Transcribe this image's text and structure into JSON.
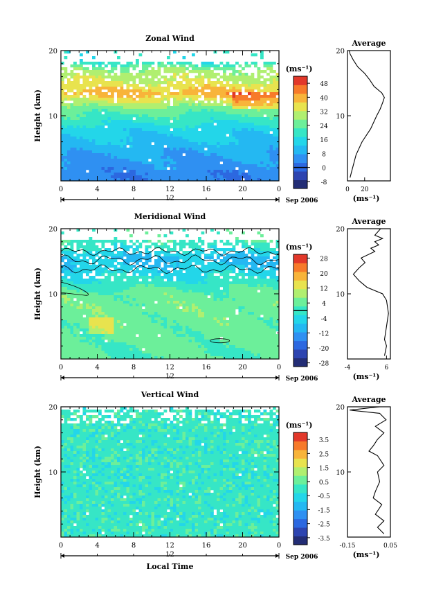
{
  "figure": {
    "xlabel": "Local Time",
    "date_label": "Sep 2006",
    "xticks": [
      "0",
      "4",
      "8",
      "12",
      "16",
      "20",
      "0"
    ],
    "yticks": [
      "10",
      "20"
    ],
    "ylabel": "Height (km)",
    "unit_label": "(ms⁻¹)",
    "day_label": "12",
    "avg_title": "Average"
  },
  "chart_data": [
    {
      "type": "heatmap",
      "title": "Zonal Wind",
      "ylabel": "Height (km)",
      "xlabel": "",
      "xlim": [
        0,
        24
      ],
      "ylim": [
        0,
        20
      ],
      "xticks": [
        "0",
        "4",
        "8",
        "12",
        "16",
        "20",
        "0"
      ],
      "yticks": [
        "10",
        "20"
      ],
      "colorbar": {
        "unit": "(ms⁻¹)",
        "ticks": [
          "48",
          "40",
          "32",
          "24",
          "16",
          "8",
          "0",
          "-8"
        ],
        "range": [
          -12,
          52
        ],
        "zero_line": 0
      },
      "field_profile": [
        [
          1,
          4
        ],
        [
          4,
          8
        ],
        [
          8,
          15
        ],
        [
          11,
          25
        ],
        [
          12.5,
          34
        ],
        [
          13.5,
          40
        ],
        [
          15,
          33
        ],
        [
          17,
          28
        ],
        [
          18.3,
          18
        ]
      ],
      "data_top_km": 18.3,
      "average": {
        "title": "Average",
        "xlim": [
          0,
          50
        ],
        "xticks": [
          "0",
          "20"
        ],
        "xlabel": "(ms⁻¹)",
        "profile": [
          [
            0.5,
            3
          ],
          [
            2,
            6
          ],
          [
            4,
            10
          ],
          [
            6,
            17
          ],
          [
            8,
            27
          ],
          [
            10,
            34
          ],
          [
            11,
            38
          ],
          [
            12,
            41
          ],
          [
            12.8,
            43
          ],
          [
            13.5,
            40
          ],
          [
            14.5,
            31
          ],
          [
            15.5,
            26
          ],
          [
            16.5,
            20
          ],
          [
            17.5,
            12
          ],
          [
            18.5,
            7
          ],
          [
            19.5,
            3
          ],
          [
            20,
            2
          ]
        ]
      }
    },
    {
      "type": "heatmap",
      "title": "Meridional Wind",
      "ylabel": "Height (km)",
      "xlabel": "",
      "xlim": [
        0,
        24
      ],
      "ylim": [
        0,
        20
      ],
      "xticks": [
        "0",
        "4",
        "8",
        "12",
        "16",
        "20",
        "0"
      ],
      "yticks": [
        "10",
        "20"
      ],
      "colorbar": {
        "unit": "(ms⁻¹)",
        "ticks": [
          "28",
          "20",
          "12",
          "4",
          "-4",
          "-12",
          "-20",
          "-28"
        ],
        "range": [
          -30,
          30
        ],
        "zero_line": 0
      },
      "field_profile": [
        [
          1,
          3
        ],
        [
          4,
          4
        ],
        [
          8,
          5
        ],
        [
          10,
          4
        ],
        [
          11.5,
          0
        ],
        [
          12.5,
          -2
        ],
        [
          14,
          -6
        ],
        [
          15.5,
          -8
        ],
        [
          17,
          -2
        ],
        [
          18.3,
          2
        ]
      ],
      "data_top_km": 18.3,
      "average": {
        "title": "Average",
        "xlim": [
          -4,
          7
        ],
        "xticks": [
          "-4",
          "6"
        ],
        "xlabel": "(ms⁻¹)",
        "profile": [
          [
            0.5,
            5.5
          ],
          [
            2,
            6
          ],
          [
            3,
            5.5
          ],
          [
            5,
            6
          ],
          [
            7,
            6.5
          ],
          [
            9,
            6
          ],
          [
            10,
            5
          ],
          [
            11,
            1
          ],
          [
            12,
            -1
          ],
          [
            13,
            -2.5
          ],
          [
            14,
            -1
          ],
          [
            14.8,
            0.5
          ],
          [
            15.5,
            -0.5
          ],
          [
            16.5,
            3
          ],
          [
            17,
            2
          ],
          [
            17.5,
            4
          ],
          [
            18,
            3
          ],
          [
            18.5,
            5
          ],
          [
            19,
            3
          ],
          [
            20,
            4.5
          ]
        ]
      },
      "contour_levels": [
        0
      ]
    },
    {
      "type": "heatmap",
      "title": "Vertical Wind",
      "ylabel": "Height (km)",
      "xlabel": "Local Time",
      "xlim": [
        0,
        24
      ],
      "ylim": [
        0,
        20
      ],
      "xticks": [
        "0",
        "4",
        "8",
        "12",
        "16",
        "20",
        "0"
      ],
      "yticks": [
        "10",
        "20"
      ],
      "colorbar": {
        "unit": "(ms⁻¹)",
        "ticks": [
          "3.5",
          "2.5",
          "1.5",
          "0.5",
          "-0.5",
          "-1.5",
          "-2.5",
          "-3.5"
        ],
        "range": [
          -4,
          4
        ]
      },
      "field_profile": [
        [
          1,
          0
        ],
        [
          5,
          0.05
        ],
        [
          10,
          0
        ],
        [
          13,
          -0.1
        ],
        [
          15,
          -0.3
        ],
        [
          17,
          0
        ],
        [
          19,
          0.2
        ]
      ],
      "data_top_km": 19.5,
      "average": {
        "title": "Average",
        "xlim": [
          -0.15,
          0.05
        ],
        "xticks": [
          "-0.15",
          "0.05"
        ],
        "xlabel": "(ms⁻¹)",
        "profile": [
          [
            0.5,
            0.02
          ],
          [
            1.5,
            -0.01
          ],
          [
            2.5,
            0.02
          ],
          [
            3.5,
            -0.02
          ],
          [
            5,
            0.01
          ],
          [
            6,
            -0.03
          ],
          [
            7,
            -0.02
          ],
          [
            8.5,
            0.0
          ],
          [
            10,
            -0.01
          ],
          [
            11,
            0.02
          ],
          [
            12.5,
            -0.01
          ],
          [
            13.2,
            -0.05
          ],
          [
            14,
            -0.03
          ],
          [
            15,
            -0.01
          ],
          [
            16,
            0.02
          ],
          [
            17,
            -0.02
          ],
          [
            18,
            0.03
          ],
          [
            19,
            0.0
          ],
          [
            19.5,
            -0.14
          ],
          [
            20,
            0.0
          ]
        ]
      }
    }
  ]
}
